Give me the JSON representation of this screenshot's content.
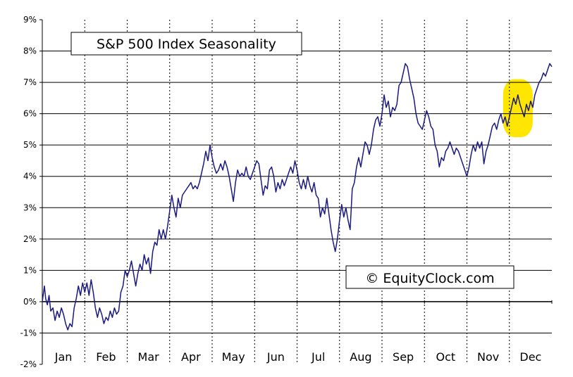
{
  "chart_data": {
    "type": "line",
    "title": "S&P 500 Index Seasonality",
    "watermark": "© EquityClock.com",
    "xlabel": "",
    "ylabel": "",
    "ylim": [
      -2,
      9
    ],
    "y_ticks": [
      -2,
      -1,
      0,
      1,
      2,
      3,
      4,
      5,
      6,
      7,
      8,
      9
    ],
    "y_tick_labels": [
      "-2%",
      "-1%",
      "0%",
      "1%",
      "2%",
      "3%",
      "4%",
      "5%",
      "6%",
      "7%",
      "8%",
      "9%"
    ],
    "x_range": [
      0,
      12
    ],
    "categories": [
      "Jan",
      "Feb",
      "Mar",
      "Apr",
      "May",
      "Jun",
      "Jul",
      "Aug",
      "Sep",
      "Oct",
      "Nov",
      "Dec"
    ],
    "grid": true,
    "line_color": "#1a1a80",
    "highlight_color": "#ffe600",
    "highlight_range": {
      "x": [
        10.85,
        11.55
      ],
      "y": [
        5.25,
        7.1
      ]
    },
    "series": [
      {
        "name": "",
        "x": [
          0.0,
          0.05,
          0.08,
          0.12,
          0.16,
          0.2,
          0.25,
          0.3,
          0.35,
          0.4,
          0.45,
          0.5,
          0.55,
          0.6,
          0.65,
          0.7,
          0.75,
          0.8,
          0.85,
          0.9,
          0.95,
          1.0,
          1.05,
          1.1,
          1.15,
          1.2,
          1.25,
          1.3,
          1.35,
          1.4,
          1.45,
          1.5,
          1.55,
          1.6,
          1.65,
          1.7,
          1.75,
          1.8,
          1.85,
          1.9,
          1.95,
          2.0,
          2.05,
          2.1,
          2.15,
          2.2,
          2.25,
          2.3,
          2.35,
          2.4,
          2.45,
          2.5,
          2.55,
          2.6,
          2.65,
          2.7,
          2.75,
          2.8,
          2.85,
          2.9,
          2.95,
          3.0,
          3.05,
          3.1,
          3.15,
          3.2,
          3.25,
          3.3,
          3.35,
          3.4,
          3.45,
          3.5,
          3.55,
          3.6,
          3.65,
          3.7,
          3.75,
          3.8,
          3.85,
          3.9,
          3.95,
          4.0,
          4.05,
          4.1,
          4.15,
          4.2,
          4.25,
          4.3,
          4.35,
          4.4,
          4.45,
          4.5,
          4.55,
          4.6,
          4.65,
          4.7,
          4.75,
          4.8,
          4.85,
          4.9,
          4.95,
          5.0,
          5.05,
          5.1,
          5.15,
          5.2,
          5.25,
          5.3,
          5.35,
          5.4,
          5.45,
          5.5,
          5.55,
          5.6,
          5.65,
          5.7,
          5.75,
          5.8,
          5.85,
          5.9,
          5.95,
          6.0,
          6.05,
          6.1,
          6.15,
          6.2,
          6.25,
          6.3,
          6.35,
          6.4,
          6.45,
          6.5,
          6.55,
          6.6,
          6.65,
          6.7,
          6.75,
          6.8,
          6.85,
          6.9,
          6.95,
          7.0,
          7.05,
          7.1,
          7.15,
          7.2,
          7.25,
          7.3,
          7.35,
          7.4,
          7.45,
          7.5,
          7.55,
          7.6,
          7.65,
          7.7,
          7.75,
          7.8,
          7.85,
          7.9,
          7.95,
          8.0,
          8.05,
          8.1,
          8.15,
          8.2,
          8.25,
          8.3,
          8.35,
          8.4,
          8.45,
          8.5,
          8.55,
          8.6,
          8.65,
          8.7,
          8.75,
          8.8,
          8.85,
          8.9,
          8.95,
          9.0,
          9.05,
          9.1,
          9.15,
          9.2,
          9.25,
          9.3,
          9.35,
          9.4,
          9.45,
          9.5,
          9.55,
          9.6,
          9.65,
          9.7,
          9.75,
          9.8,
          9.85,
          9.9,
          9.95,
          10.0,
          10.05,
          10.1,
          10.15,
          10.2,
          10.25,
          10.3,
          10.35,
          10.4,
          10.45,
          10.5,
          10.55,
          10.6,
          10.65,
          10.7,
          10.75,
          10.8,
          10.85,
          10.9,
          10.95,
          11.0,
          11.05,
          11.1,
          11.15,
          11.2,
          11.25,
          11.3,
          11.35,
          11.4,
          11.45,
          11.5,
          11.55,
          11.6,
          11.65,
          11.7,
          11.75,
          11.8,
          11.85,
          11.9,
          11.95,
          12.0
        ],
        "values": [
          0.0,
          0.5,
          0.1,
          -0.1,
          0.2,
          -0.3,
          -0.2,
          -0.6,
          -0.3,
          -0.5,
          -0.2,
          -0.4,
          -0.7,
          -0.9,
          -0.7,
          -0.8,
          -0.2,
          0.1,
          0.5,
          0.2,
          0.6,
          0.3,
          0.6,
          0.2,
          0.7,
          0.3,
          -0.2,
          -0.5,
          -0.2,
          -0.4,
          -0.7,
          -0.5,
          -0.6,
          -0.3,
          -0.5,
          -0.2,
          -0.4,
          -0.3,
          0.3,
          0.5,
          1.0,
          0.8,
          1.0,
          1.3,
          0.9,
          0.5,
          0.9,
          1.2,
          1.0,
          1.5,
          1.2,
          1.4,
          0.9,
          1.6,
          1.9,
          1.8,
          2.3,
          2.0,
          2.3,
          2.0,
          2.4,
          2.9,
          3.4,
          3.0,
          2.7,
          3.3,
          3.0,
          3.4,
          3.5,
          3.6,
          3.7,
          3.8,
          3.6,
          3.7,
          3.6,
          3.8,
          4.1,
          4.4,
          4.8,
          4.5,
          5.0,
          4.6,
          4.3,
          4.1,
          4.2,
          4.4,
          4.2,
          4.5,
          4.3,
          4.0,
          3.6,
          3.2,
          3.8,
          4.2,
          4.0,
          4.1,
          4.0,
          4.3,
          4.0,
          3.9,
          4.1,
          4.3,
          4.5,
          4.4,
          3.9,
          3.4,
          3.7,
          3.6,
          4.2,
          4.3,
          4.0,
          3.5,
          3.8,
          3.6,
          3.9,
          3.7,
          3.9,
          4.1,
          4.3,
          4.1,
          4.5,
          4.2,
          3.8,
          3.6,
          3.9,
          3.6,
          4.0,
          3.7,
          3.5,
          3.8,
          3.4,
          3.3,
          2.7,
          3.0,
          2.8,
          3.3,
          2.8,
          2.3,
          1.9,
          1.6,
          2.0,
          2.6,
          3.1,
          2.7,
          3.0,
          2.6,
          2.3,
          3.6,
          3.8,
          4.3,
          4.6,
          4.3,
          4.7,
          5.1,
          5.0,
          4.7,
          5.0,
          5.5,
          5.8,
          5.9,
          5.6,
          6.0,
          6.6,
          6.2,
          6.4,
          5.9,
          6.2,
          6.1,
          6.3,
          6.9,
          7.0,
          7.3,
          7.6,
          7.5,
          7.1,
          6.8,
          6.5,
          6.0,
          5.7,
          5.6,
          5.5,
          5.8,
          6.1,
          5.9,
          5.6,
          5.5,
          5.0,
          4.8,
          4.3,
          4.6,
          4.5,
          4.8,
          4.9,
          5.1,
          4.9,
          4.7,
          4.9,
          4.8,
          4.6,
          4.4,
          4.2,
          4.0,
          4.3,
          4.7,
          5.0,
          4.8,
          5.1,
          4.9,
          5.1,
          4.4,
          4.8,
          5.0,
          5.3,
          5.6,
          5.7,
          5.5,
          5.8,
          6.0,
          5.7,
          5.9,
          5.6,
          5.9,
          6.2,
          6.5,
          6.3,
          6.6,
          6.3,
          6.1,
          5.9,
          6.3,
          6.1,
          6.4,
          6.2,
          6.6,
          6.8,
          7.0,
          7.1,
          7.3,
          7.2,
          7.4,
          7.6,
          7.5
        ]
      }
    ]
  }
}
